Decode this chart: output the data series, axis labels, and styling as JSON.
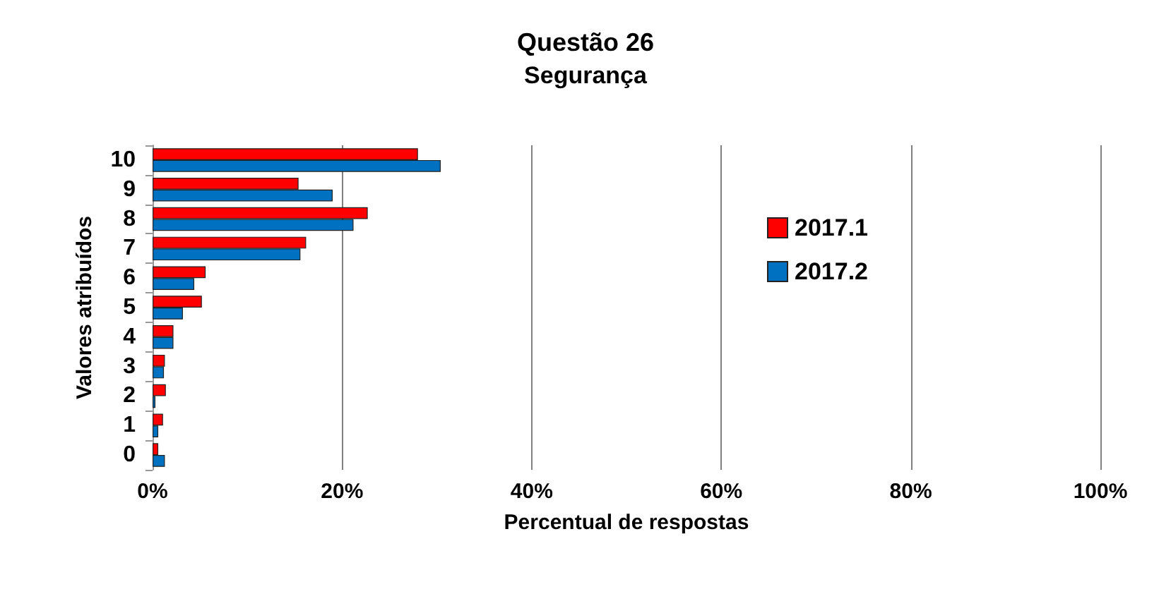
{
  "chart_data": {
    "type": "bar",
    "orientation": "horizontal",
    "title": "Questão 26",
    "subtitle": "Segurança",
    "xlabel": "Percentual de respostas",
    "ylabel": "Valores atribuídos",
    "categories": [
      "10",
      "9",
      "8",
      "7",
      "6",
      "5",
      "4",
      "3",
      "2",
      "1",
      "0"
    ],
    "series": [
      {
        "name": "2017.1",
        "color": "#ff0000",
        "values": [
          28.0,
          15.4,
          22.7,
          16.2,
          5.6,
          5.2,
          2.2,
          1.3,
          1.4,
          1.1,
          0.6
        ]
      },
      {
        "name": "2017.2",
        "color": "#0070c0",
        "values": [
          30.4,
          19.0,
          21.2,
          15.6,
          4.4,
          3.2,
          2.2,
          1.2,
          0.3,
          0.6,
          1.3
        ]
      }
    ],
    "xlim": [
      0,
      100
    ],
    "xticks": [
      {
        "value": 0,
        "label": "0%"
      },
      {
        "value": 20,
        "label": "20%"
      },
      {
        "value": 40,
        "label": "40%"
      },
      {
        "value": 60,
        "label": "60%"
      },
      {
        "value": 80,
        "label": "80%"
      },
      {
        "value": 100,
        "label": "100%"
      }
    ],
    "grid": "x",
    "legend": "right"
  }
}
